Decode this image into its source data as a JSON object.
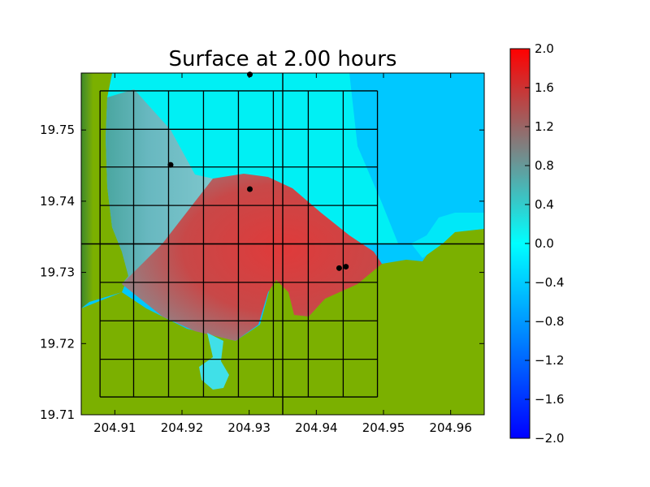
{
  "chart_data": {
    "type": "heatmap",
    "title": "Surface at 2.00 hours",
    "xlabel": "",
    "ylabel": "",
    "xlim": [
      204.905,
      204.965
    ],
    "ylim": [
      19.71,
      19.758
    ],
    "x_ticks": [
      "204.91",
      "204.92",
      "204.93",
      "204.94",
      "204.95",
      "204.96"
    ],
    "y_ticks": [
      "19.71",
      "19.72",
      "19.73",
      "19.74",
      "19.75"
    ],
    "colorbar": {
      "range": [
        -2.0,
        2.0
      ],
      "ticks": [
        "2.0",
        "1.6",
        "1.2",
        "0.8",
        "0.4",
        "0.0",
        "−0.4",
        "−0.8",
        "−1.2",
        "−1.6",
        "−2.0"
      ],
      "colors": {
        "low": "#0000ff",
        "mid": "#00ffff",
        "high": "#ff0000"
      }
    },
    "land_colors": [
      "#3f8a27",
      "#7bb000"
    ],
    "grid": {
      "x_edges": [
        204.9078,
        204.9128,
        204.918,
        204.9232,
        204.9284,
        204.9336,
        204.9388,
        204.944,
        204.9491
      ],
      "y_edges": [
        19.7125,
        19.7178,
        19.7232,
        19.7286,
        19.734,
        19.7394,
        19.7448,
        19.7501,
        19.7555
      ]
    },
    "crosshair": {
      "x": 204.935,
      "y": 19.734
    },
    "gauges": [
      {
        "x": 204.9301,
        "y": 19.7578
      },
      {
        "x": 204.9183,
        "y": 19.7451
      },
      {
        "x": 204.9301,
        "y": 19.7417
      },
      {
        "x": 204.9434,
        "y": 19.7306
      },
      {
        "x": 204.9444,
        "y": 19.7308
      }
    ]
  }
}
